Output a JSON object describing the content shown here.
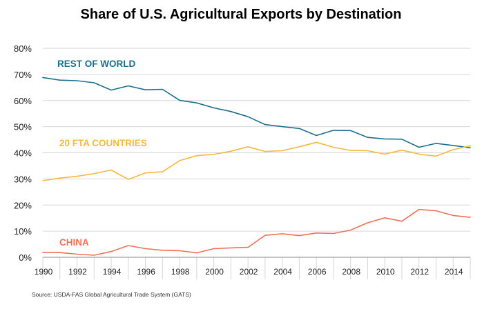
{
  "chart_data": {
    "type": "line",
    "title": "Share of U.S. Agricultural Exports by Destination",
    "x": [
      1990,
      1991,
      1992,
      1993,
      1994,
      1995,
      1996,
      1997,
      1998,
      1999,
      2000,
      2001,
      2002,
      2003,
      2004,
      2005,
      2006,
      2007,
      2008,
      2009,
      2010,
      2011,
      2012,
      2013,
      2014,
      2015
    ],
    "xlim": [
      1990,
      2015
    ],
    "xticks": [
      "1990",
      "1992",
      "1994",
      "1996",
      "1998",
      "2000",
      "2002",
      "2004",
      "2006",
      "2008",
      "2010",
      "2012",
      "2014"
    ],
    "ylim": [
      0,
      80
    ],
    "yticks": [
      "0%",
      "10%",
      "20%",
      "30%",
      "40%",
      "50%",
      "60%",
      "70%",
      "80%"
    ],
    "grid": true,
    "series": [
      {
        "name": "REST OF WORLD",
        "color": "#1a6f8c",
        "values": [
          68.8,
          67.8,
          67.6,
          66.8,
          64.0,
          65.6,
          64.1,
          64.3,
          60.1,
          59.1,
          57.2,
          55.8,
          53.8,
          50.8,
          50.0,
          49.3,
          46.6,
          48.6,
          48.5,
          45.9,
          45.3,
          45.2,
          42.1,
          43.6,
          42.8,
          41.9
        ]
      },
      {
        "name": "20 FTA COUNTRIES",
        "color": "#f5b83a",
        "values": [
          29.3,
          30.3,
          31.0,
          32.0,
          33.4,
          29.8,
          32.3,
          32.7,
          37.0,
          38.9,
          39.4,
          40.6,
          42.3,
          40.5,
          40.8,
          42.3,
          44.0,
          42.1,
          40.9,
          40.8,
          39.5,
          41.0,
          39.5,
          38.7,
          41.2,
          42.7
        ]
      },
      {
        "name": "CHINA",
        "color": "#ef7059",
        "values": [
          1.9,
          1.8,
          1.2,
          0.8,
          2.2,
          4.5,
          3.3,
          2.7,
          2.5,
          1.7,
          3.3,
          3.6,
          3.8,
          8.4,
          9.0,
          8.3,
          9.3,
          9.1,
          10.4,
          13.2,
          15.1,
          13.8,
          18.3,
          17.8,
          16.0,
          15.3
        ]
      }
    ],
    "annotations": [
      "REST OF WORLD",
      "20 FTA COUNTRIES",
      "CHINA"
    ]
  },
  "source": "Source:  USDA-FAS Global Agricultural Trade System (GATS)"
}
